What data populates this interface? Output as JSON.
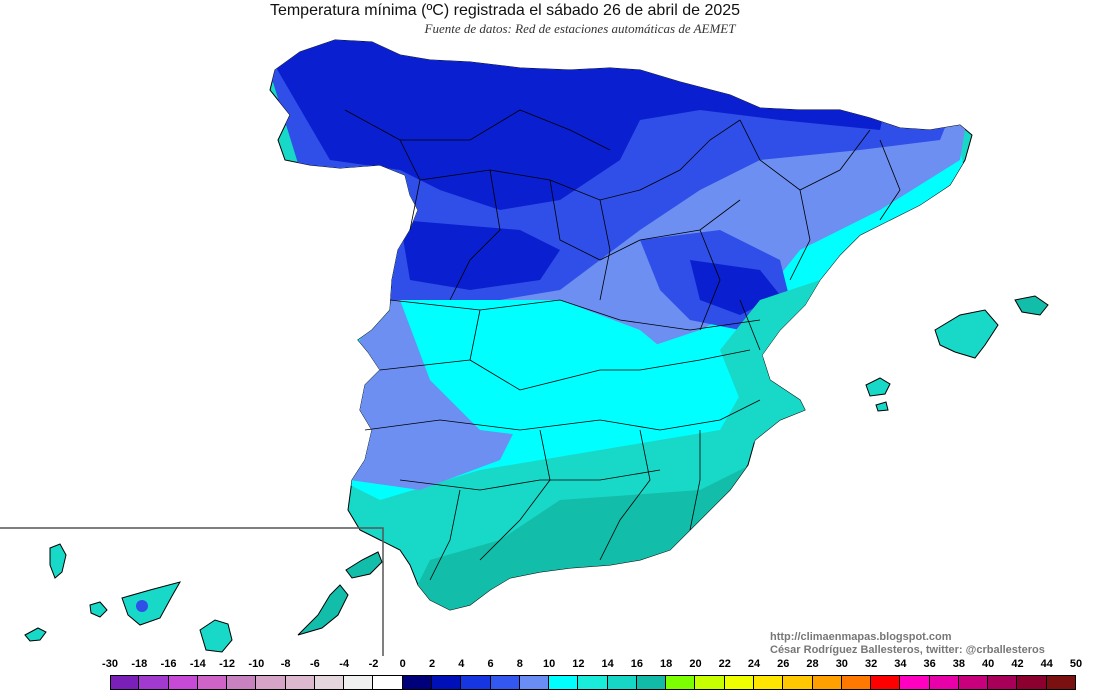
{
  "title": "Temperatura mínima (ºC) registrada el sábado 26 de abril de 2025",
  "subtitle": "Fuente de datos: Red de estaciones automáticas de AEMET",
  "credits": {
    "blog": "http://climaenmapas.blogspot.com",
    "author": "César Rodríguez Ballesteros, twitter: @crballesteros"
  },
  "legend": {
    "ticks": [
      "-30",
      "-18",
      "-16",
      "-14",
      "-12",
      "-10",
      "-8",
      "-6",
      "-4",
      "-2",
      "0",
      "2",
      "4",
      "6",
      "8",
      "10",
      "12",
      "14",
      "16",
      "18",
      "20",
      "22",
      "24",
      "26",
      "28",
      "30",
      "32",
      "34",
      "36",
      "38",
      "40",
      "42",
      "44",
      "50"
    ],
    "colors": [
      "#7a1fb8",
      "#a23ad0",
      "#c64ad6",
      "#cf63c8",
      "#c882c0",
      "#d5a4c7",
      "#dcb9cf",
      "#e5d5dd",
      "#f0f0f0",
      "#ffffff",
      "#00007a",
      "#0010b8",
      "#1536e0",
      "#3358f0",
      "#6a8cf5",
      "#00ffff",
      "#19ecd8",
      "#16d6c6",
      "#12baa8",
      "#7cff00",
      "#c8ff00",
      "#f0ff00",
      "#ffe600",
      "#ffc800",
      "#ffa000",
      "#ff7800",
      "#ff0000",
      "#ff00c0",
      "#e800a8",
      "#c8007c",
      "#a80058",
      "#8c0030",
      "#7a1010"
    ]
  },
  "map_colors": {
    "cold_deep": "#0a1fd0",
    "cold": "#2f4fe8",
    "cool": "#6d8ff2",
    "mild": "#00ffff",
    "warm": "#18d9c8",
    "warmer": "#12bdaa",
    "sea": "#ffffff",
    "borders": "#000000"
  }
}
